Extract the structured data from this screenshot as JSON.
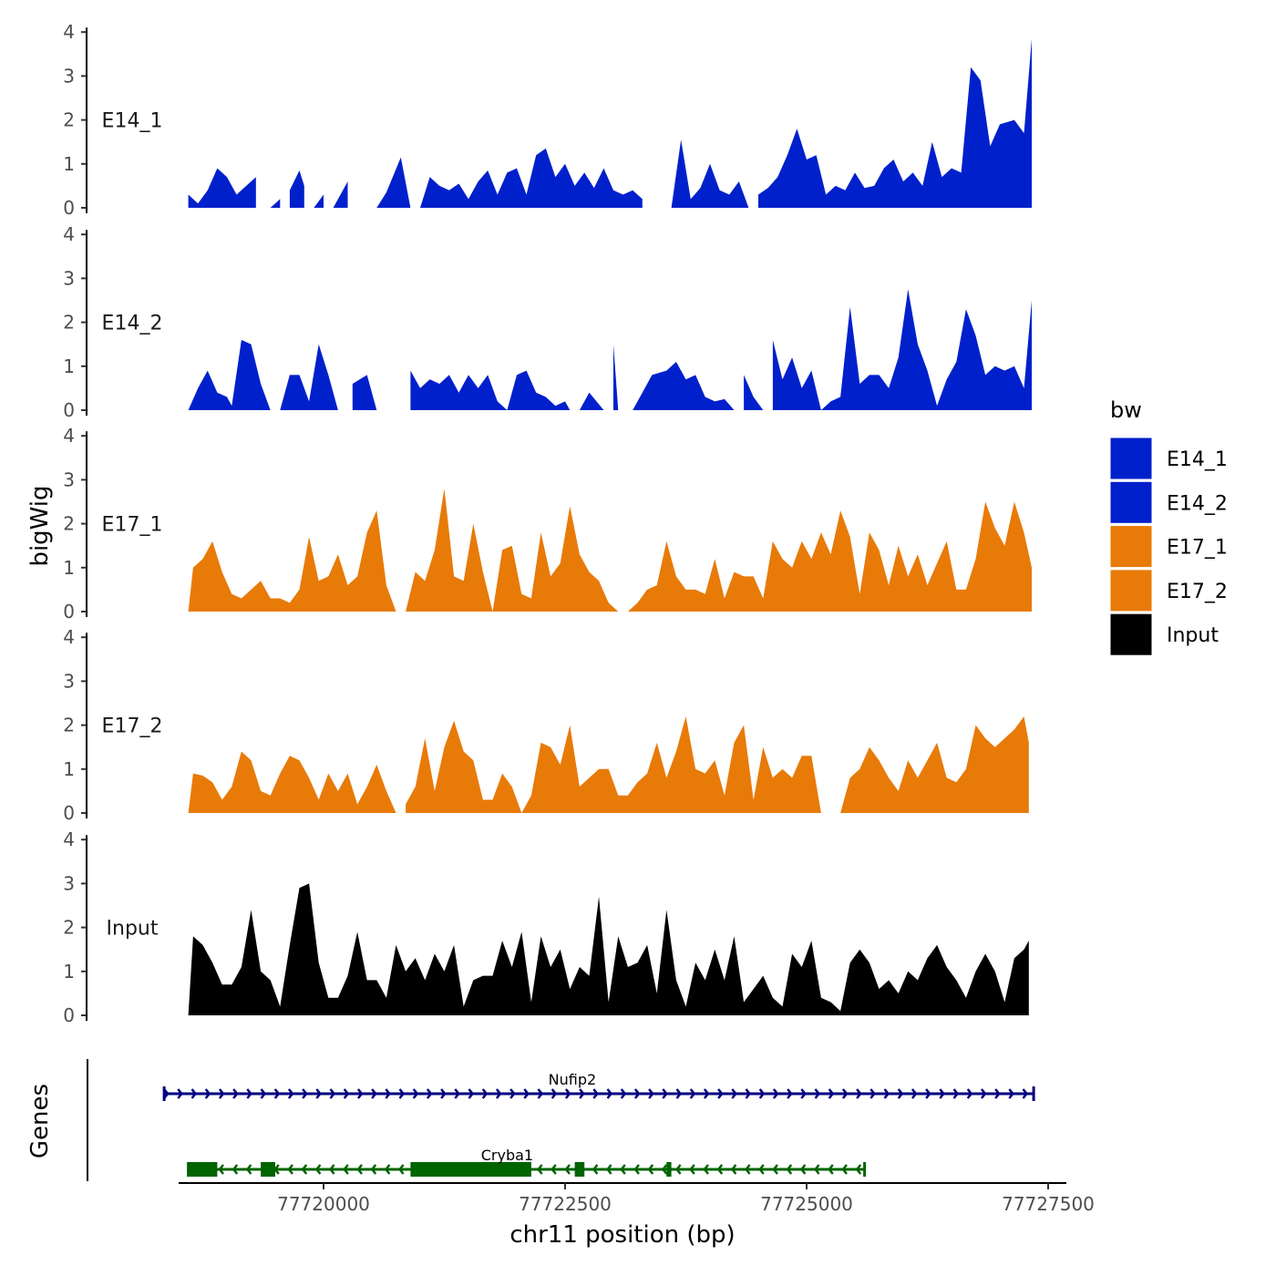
{
  "chart_data": {
    "type": "area",
    "y_title": "bigWig",
    "x_title": "chr11 position (bp)",
    "genes_title": "Genes",
    "xlim": [
      77718500,
      77727500
    ],
    "x_ticks": [
      77720000,
      77722500,
      77725000,
      77727500
    ],
    "x_tick_labels": [
      "77720000",
      "77722500",
      "77725000",
      "77727500"
    ],
    "ylim": [
      0,
      4
    ],
    "y_ticks": [
      "0",
      "1",
      "2",
      "3",
      "4"
    ],
    "legend": {
      "title": "bw",
      "entries": [
        {
          "label": "E14_1",
          "color": "#0020CC"
        },
        {
          "label": "E14_2",
          "color": "#0020CC"
        },
        {
          "label": "E17_1",
          "color": "#E87A08"
        },
        {
          "label": "E17_2",
          "color": "#E87A08"
        },
        {
          "label": "Input",
          "color": "#000000"
        }
      ]
    },
    "tracks": [
      {
        "name": "E14_1",
        "color": "#0020CC",
        "x": [
          77718600,
          77718700,
          77718800,
          77718900,
          77719000,
          77719100,
          77719200,
          77719300,
          77719400,
          77719450,
          77719550,
          77719650,
          77719750,
          77719800,
          77719900,
          77720000,
          77720100,
          77720250,
          77720400,
          77720550,
          77720650,
          77720800,
          77720900,
          77721000,
          77721100,
          77721200,
          77721300,
          77721400,
          77721500,
          77721600,
          77721700,
          77721800,
          77721900,
          77722000,
          77722100,
          77722200,
          77722300,
          77722400,
          77722500,
          77722600,
          77722700,
          77722800,
          77722900,
          77723000,
          77723100,
          77723200,
          77723300,
          77723450,
          77723600,
          77723700,
          77723800,
          77723900,
          77724000,
          77724100,
          77724200,
          77724300,
          77724400,
          77724500,
          77724600,
          77724700,
          77724800,
          77724900,
          77725000,
          77725100,
          77725200,
          77725300,
          77725400,
          77725500,
          77725600,
          77725700,
          77725800,
          77725900,
          77726000,
          77726100,
          77726200,
          77726300,
          77726400,
          77726500,
          77726600,
          77726700,
          77726800,
          77726900,
          77727000,
          77727150,
          77727250,
          77727330
        ],
        "y": [
          0.3,
          0.1,
          0.4,
          0.9,
          0.7,
          0.3,
          0.5,
          0.7,
          0.4,
          0.0,
          0.2,
          0.4,
          0.85,
          0.5,
          0.0,
          0.3,
          0.0,
          0.6,
          0.0,
          0.0,
          0.35,
          1.15,
          0.0,
          0.0,
          0.7,
          0.5,
          0.4,
          0.55,
          0.2,
          0.6,
          0.85,
          0.3,
          0.8,
          0.9,
          0.3,
          1.2,
          1.35,
          0.7,
          1.0,
          0.5,
          0.8,
          0.45,
          0.9,
          0.4,
          0.3,
          0.4,
          0.2,
          0.0,
          0.0,
          1.55,
          0.2,
          0.45,
          1.0,
          0.4,
          0.3,
          0.6,
          0.0,
          0.3,
          0.45,
          0.7,
          1.2,
          1.8,
          1.1,
          1.2,
          0.3,
          0.5,
          0.4,
          0.8,
          0.45,
          0.5,
          0.9,
          1.1,
          0.6,
          0.8,
          0.5,
          1.5,
          0.7,
          0.9,
          0.8,
          3.2,
          2.9,
          1.4,
          1.9,
          2.0,
          1.7,
          3.85
        ],
        "gaps": [
          [
            77719300,
            77719450
          ],
          [
            77719550,
            77719650
          ],
          [
            77719800,
            77719900
          ],
          [
            77720000,
            77720100
          ],
          [
            77720250,
            77720400
          ],
          [
            77720900,
            77721000
          ],
          [
            77723300,
            77723450
          ],
          [
            77724400,
            77724500
          ]
        ]
      },
      {
        "name": "E14_2",
        "color": "#0020CC",
        "x": [
          77718600,
          77718700,
          77718800,
          77718900,
          77719000,
          77719050,
          77719150,
          77719250,
          77719350,
          77719450,
          77719550,
          77719650,
          77719750,
          77719850,
          77719950,
          77720050,
          77720150,
          77720300,
          77720450,
          77720550,
          77720650,
          77720750,
          77720900,
          77721000,
          77721100,
          77721200,
          77721300,
          77721400,
          77721500,
          77721600,
          77721700,
          77721800,
          77721900,
          77722000,
          77722100,
          77722200,
          77722300,
          77722400,
          77722500,
          77722550,
          77722650,
          77722750,
          77722900,
          77723000,
          77723050,
          77723200,
          77723300,
          77723400,
          77723550,
          77723650,
          77723750,
          77723850,
          77723950,
          77724050,
          77724150,
          77724250,
          77724350,
          77724450,
          77724550,
          77724650,
          77724750,
          77724850,
          77724950,
          77725050,
          77725150,
          77725250,
          77725350,
          77725450,
          77725550,
          77725650,
          77725750,
          77725850,
          77725950,
          77726050,
          77726150,
          77726250,
          77726350,
          77726450,
          77726550,
          77726650,
          77726750,
          77726850,
          77726950,
          77727050,
          77727150,
          77727250,
          77727330
        ],
        "y": [
          0.0,
          0.5,
          0.9,
          0.4,
          0.3,
          0.1,
          1.6,
          1.5,
          0.6,
          0.0,
          0.0,
          0.8,
          0.8,
          0.2,
          1.5,
          0.8,
          0.0,
          0.6,
          0.8,
          0.0,
          0.0,
          0.0,
          0.9,
          0.5,
          0.7,
          0.6,
          0.8,
          0.4,
          0.8,
          0.5,
          0.8,
          0.2,
          0.0,
          0.8,
          0.9,
          0.4,
          0.3,
          0.1,
          0.2,
          0.0,
          0.0,
          0.4,
          0.0,
          1.5,
          0.0,
          0.0,
          0.4,
          0.8,
          0.9,
          1.1,
          0.7,
          0.8,
          0.3,
          0.2,
          0.25,
          0.0,
          0.8,
          0.3,
          0.0,
          1.6,
          0.7,
          1.2,
          0.5,
          0.9,
          0.0,
          0.2,
          0.3,
          2.35,
          0.6,
          0.8,
          0.8,
          0.5,
          1.2,
          2.75,
          1.5,
          0.9,
          0.1,
          0.7,
          1.1,
          2.3,
          1.7,
          0.8,
          1.0,
          0.9,
          1.0,
          0.5,
          2.5
        ],
        "gaps": [
          [
            77719450,
            77719550
          ],
          [
            77720150,
            77720300
          ],
          [
            77720650,
            77720900
          ],
          [
            77722550,
            77722650
          ],
          [
            77722900,
            77723000
          ],
          [
            77723050,
            77723200
          ],
          [
            77724250,
            77724350
          ],
          [
            77724550,
            77724650
          ]
        ]
      },
      {
        "name": "E17_1",
        "color": "#E87A08",
        "x": [
          77718600,
          77718650,
          77718750,
          77718850,
          77718950,
          77719050,
          77719150,
          77719250,
          77719350,
          77719450,
          77719550,
          77719650,
          77719750,
          77719850,
          77719950,
          77720050,
          77720150,
          77720250,
          77720350,
          77720450,
          77720550,
          77720650,
          77720750,
          77720850,
          77720950,
          77721050,
          77721150,
          77721250,
          77721350,
          77721450,
          77721550,
          77721650,
          77721750,
          77721850,
          77721950,
          77722050,
          77722150,
          77722250,
          77722350,
          77722450,
          77722550,
          77722650,
          77722750,
          77722850,
          77722950,
          77723050,
          77723150,
          77723250,
          77723350,
          77723450,
          77723550,
          77723650,
          77723750,
          77723850,
          77723950,
          77724050,
          77724150,
          77724250,
          77724350,
          77724450,
          77724550,
          77724650,
          77724750,
          77724850,
          77724950,
          77725050,
          77725150,
          77725250,
          77725350,
          77725450,
          77725550,
          77725650,
          77725750,
          77725850,
          77725950,
          77726050,
          77726150,
          77726250,
          77726350,
          77726450,
          77726550,
          77726650,
          77726750,
          77726850,
          77726950,
          77727050,
          77727150,
          77727250,
          77727330
        ],
        "y": [
          0.0,
          1.0,
          1.2,
          1.6,
          0.9,
          0.4,
          0.3,
          0.5,
          0.7,
          0.3,
          0.3,
          0.2,
          0.5,
          1.7,
          0.7,
          0.8,
          1.3,
          0.6,
          0.8,
          1.8,
          2.3,
          0.6,
          0.0,
          0.0,
          0.9,
          0.7,
          1.4,
          2.8,
          0.8,
          0.7,
          2.0,
          0.9,
          0.0,
          1.4,
          1.5,
          0.4,
          0.3,
          1.8,
          0.8,
          1.1,
          2.4,
          1.3,
          0.9,
          0.7,
          0.2,
          0.0,
          0.0,
          0.2,
          0.5,
          0.6,
          1.6,
          0.8,
          0.5,
          0.5,
          0.4,
          1.2,
          0.3,
          0.9,
          0.8,
          0.8,
          0.3,
          1.6,
          1.2,
          1.0,
          1.6,
          1.2,
          1.8,
          1.3,
          2.3,
          1.7,
          0.4,
          1.8,
          1.4,
          0.6,
          1.5,
          0.8,
          1.3,
          0.6,
          1.1,
          1.6,
          0.5,
          0.5,
          1.2,
          2.5,
          1.9,
          1.5,
          2.5,
          1.8,
          1.0
        ],
        "gaps": [
          [
            77720750,
            77720850
          ],
          [
            77723050,
            77723150
          ]
        ]
      },
      {
        "name": "E17_2",
        "color": "#E87A08",
        "x": [
          77718600,
          77718650,
          77718750,
          77718850,
          77718950,
          77719050,
          77719150,
          77719250,
          77719350,
          77719450,
          77719550,
          77719650,
          77719750,
          77719850,
          77719950,
          77720050,
          77720150,
          77720250,
          77720350,
          77720450,
          77720550,
          77720650,
          77720750,
          77720850,
          77720950,
          77721050,
          77721150,
          77721250,
          77721350,
          77721450,
          77721550,
          77721650,
          77721750,
          77721850,
          77721950,
          77722050,
          77722150,
          77722250,
          77722350,
          77722450,
          77722550,
          77722650,
          77722750,
          77722850,
          77722950,
          77723050,
          77723150,
          77723250,
          77723350,
          77723450,
          77723550,
          77723650,
          77723750,
          77723850,
          77723950,
          77724050,
          77724150,
          77724250,
          77724350,
          77724450,
          77724550,
          77724650,
          77724750,
          77724850,
          77724950,
          77725050,
          77725150,
          77725250,
          77725350,
          77725450,
          77725550,
          77725650,
          77725750,
          77725850,
          77725950,
          77726050,
          77726150,
          77726250,
          77726350,
          77726450,
          77726550,
          77726650,
          77726750,
          77726850,
          77726950,
          77727050,
          77727150,
          77727250,
          77727300
        ],
        "y": [
          0.0,
          0.9,
          0.85,
          0.7,
          0.3,
          0.6,
          1.4,
          1.2,
          0.5,
          0.4,
          0.9,
          1.3,
          1.2,
          0.8,
          0.3,
          0.9,
          0.5,
          0.9,
          0.2,
          0.6,
          1.1,
          0.5,
          0.0,
          0.2,
          0.6,
          1.7,
          0.5,
          1.5,
          2.1,
          1.4,
          1.2,
          0.3,
          0.3,
          0.9,
          0.6,
          0.0,
          0.4,
          1.6,
          1.5,
          1.1,
          2.0,
          0.6,
          0.8,
          1.0,
          1.0,
          0.4,
          0.4,
          0.7,
          0.9,
          1.6,
          0.8,
          1.4,
          2.2,
          1.0,
          0.9,
          1.2,
          0.4,
          1.6,
          2.0,
          0.3,
          1.5,
          0.8,
          1.0,
          0.8,
          1.3,
          1.3,
          0.0,
          0.0,
          0.0,
          0.8,
          1.0,
          1.5,
          1.2,
          0.8,
          0.5,
          1.2,
          0.8,
          1.2,
          1.6,
          0.8,
          0.7,
          1.0,
          2.0,
          1.7,
          1.5,
          1.7,
          1.9,
          2.2,
          1.6
        ],
        "gaps": [
          [
            77720750,
            77720850
          ],
          [
            77725150,
            77725350
          ]
        ]
      },
      {
        "name": "Input",
        "color": "#000000",
        "x": [
          77718600,
          77718650,
          77718750,
          77718850,
          77718950,
          77719050,
          77719150,
          77719250,
          77719350,
          77719450,
          77719550,
          77719650,
          77719750,
          77719850,
          77719950,
          77720050,
          77720150,
          77720250,
          77720350,
          77720450,
          77720550,
          77720650,
          77720750,
          77720850,
          77720950,
          77721050,
          77721150,
          77721250,
          77721350,
          77721450,
          77721550,
          77721650,
          77721750,
          77721850,
          77721950,
          77722050,
          77722150,
          77722250,
          77722350,
          77722450,
          77722550,
          77722650,
          77722750,
          77722850,
          77722950,
          77723050,
          77723150,
          77723250,
          77723350,
          77723450,
          77723550,
          77723650,
          77723750,
          77723850,
          77723950,
          77724050,
          77724150,
          77724250,
          77724350,
          77724450,
          77724550,
          77724650,
          77724750,
          77724850,
          77724950,
          77725050,
          77725150,
          77725250,
          77725350,
          77725450,
          77725550,
          77725650,
          77725750,
          77725850,
          77725950,
          77726050,
          77726150,
          77726250,
          77726350,
          77726450,
          77726550,
          77726650,
          77726750,
          77726850,
          77726950,
          77727050,
          77727150,
          77727250,
          77727300
        ],
        "y": [
          0.0,
          1.8,
          1.6,
          1.2,
          0.7,
          0.7,
          1.1,
          2.4,
          1.0,
          0.8,
          0.2,
          1.6,
          2.9,
          3.0,
          1.2,
          0.4,
          0.4,
          0.9,
          1.9,
          0.8,
          0.8,
          0.4,
          1.6,
          1.0,
          1.3,
          0.8,
          1.4,
          1.0,
          1.6,
          0.2,
          0.8,
          0.9,
          0.9,
          1.7,
          1.1,
          1.9,
          0.3,
          1.8,
          1.1,
          1.5,
          0.6,
          1.1,
          0.9,
          2.7,
          0.3,
          1.8,
          1.1,
          1.2,
          1.6,
          0.5,
          2.4,
          0.8,
          0.2,
          1.2,
          0.8,
          1.5,
          0.8,
          1.8,
          0.3,
          0.6,
          0.9,
          0.4,
          0.2,
          1.4,
          1.1,
          1.7,
          0.4,
          0.3,
          0.1,
          1.2,
          1.5,
          1.2,
          0.6,
          0.8,
          0.5,
          1.0,
          0.8,
          1.3,
          1.6,
          1.1,
          0.8,
          0.4,
          1.0,
          1.4,
          1.0,
          0.3,
          1.3,
          1.5,
          1.7
        ],
        "gaps": []
      }
    ],
    "genes": [
      {
        "name": "Nufip2",
        "color": "#000080",
        "strand": "+",
        "start": 77718350,
        "end": 77727350,
        "label_pos": 77722575,
        "exons": []
      },
      {
        "name": "Cryba1",
        "color": "#006400",
        "strand": "-",
        "start": 77718600,
        "end": 77725600,
        "label_pos": 77721900,
        "exons": [
          [
            77718600,
            77718900
          ],
          [
            77719350,
            77719500
          ],
          [
            77720900,
            77722150
          ],
          [
            77722600,
            77722700
          ],
          [
            77723550,
            77723600
          ]
        ]
      }
    ]
  }
}
